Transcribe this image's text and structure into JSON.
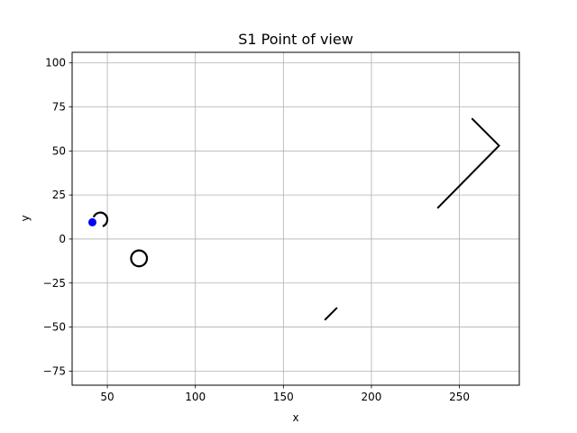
{
  "chart_data": {
    "type": "scatter",
    "title": "S1 Point of view",
    "xlabel": "x",
    "ylabel": "y",
    "xlim": [
      30,
      284
    ],
    "ylim": [
      -83,
      106
    ],
    "xticks": [
      50,
      100,
      150,
      200,
      250
    ],
    "yticks": [
      -75,
      -50,
      -25,
      0,
      25,
      50,
      75,
      100
    ],
    "grid": true,
    "colors": {
      "line": "#000000",
      "point": "#0000ff",
      "grid": "#b0b0b0"
    },
    "series": [
      {
        "kind": "polyline",
        "points": [
          [
            237.5,
            17.5
          ],
          [
            272.5,
            53
          ],
          [
            257,
            68.5
          ]
        ]
      },
      {
        "kind": "polyline",
        "points": [
          [
            173.5,
            -46
          ],
          [
            180.5,
            -39
          ]
        ]
      },
      {
        "kind": "arc",
        "center": [
          46,
          11
        ],
        "radius": 4,
        "start_deg": 290,
        "end_deg": 160
      },
      {
        "kind": "circle",
        "center": [
          68,
          -11
        ],
        "radius": 4.5
      },
      {
        "kind": "point",
        "x": 41.5,
        "y": 9.5
      }
    ]
  }
}
